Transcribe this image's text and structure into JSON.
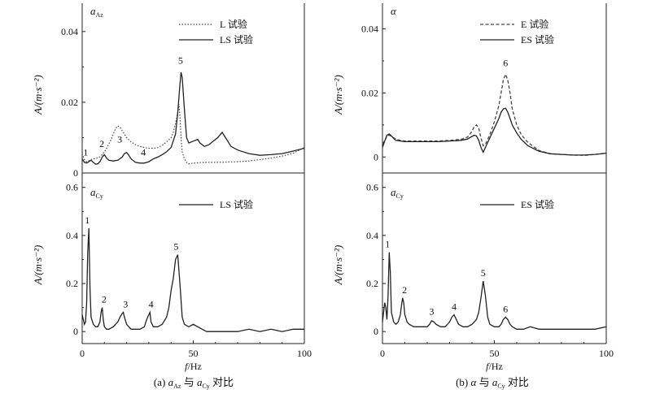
{
  "figure": {
    "caption_left": "(a) aₐ₂ 与 aᴄᵧ 对比",
    "caption_left_parts": {
      "prefix": "(a) ",
      "v1": "a",
      "s1": "Az",
      "mid": " 与 ",
      "v2": "a",
      "s2": "Cy",
      "suffix": " 对比"
    },
    "caption_right_parts": {
      "prefix": "(b) ",
      "v1": "α",
      "mid": " 与 ",
      "v2": "a",
      "s2": "Cy",
      "suffix": " 对比"
    }
  },
  "chart_data": [
    {
      "id": "tl",
      "type": "line",
      "panel_tag": {
        "var": "a",
        "sub": "Az"
      },
      "ylabel": "A/(m·s⁻²)",
      "xlim": [
        0,
        100
      ],
      "ylim": [
        0,
        0.048
      ],
      "yticks": [
        0,
        0.02,
        0.04
      ],
      "ytick_labels": [
        "0",
        "0.02",
        "0.04"
      ],
      "series": [
        {
          "name": "L 试验",
          "style": "dotted",
          "x": [
            0,
            1,
            2,
            3,
            4,
            5,
            6,
            7,
            8,
            9,
            10,
            11,
            12,
            13,
            14,
            15,
            16,
            17,
            18,
            19,
            20,
            22,
            24,
            26,
            28,
            30,
            32,
            34,
            36,
            38,
            40,
            41,
            42,
            43,
            43.5,
            44,
            44.5,
            45,
            46,
            47,
            48,
            50,
            55,
            60,
            65,
            70,
            75,
            80,
            85,
            90,
            95,
            100
          ],
          "y": [
            0.0055,
            0.0038,
            0.0032,
            0.0035,
            0.0038,
            0.004,
            0.0041,
            0.0043,
            0.0046,
            0.0052,
            0.006,
            0.007,
            0.0082,
            0.0095,
            0.011,
            0.0125,
            0.0133,
            0.013,
            0.012,
            0.011,
            0.01,
            0.0088,
            0.008,
            0.0075,
            0.0072,
            0.007,
            0.007,
            0.0072,
            0.0078,
            0.0088,
            0.01,
            0.0115,
            0.014,
            0.017,
            0.0195,
            0.016,
            0.01,
            0.006,
            0.004,
            0.003,
            0.0026,
            0.0028,
            0.003,
            0.003,
            0.0031,
            0.0032,
            0.0034,
            0.0038,
            0.0042,
            0.0048,
            0.0056,
            0.0072
          ]
        },
        {
          "name": "LS 试验",
          "style": "solid",
          "x": [
            0,
            1,
            2,
            3,
            4,
            5,
            6,
            7,
            8,
            9,
            10,
            11,
            12,
            14,
            16,
            18,
            19,
            20,
            21,
            22,
            24,
            26,
            28,
            30,
            32,
            34,
            36,
            38,
            40,
            42,
            43,
            44,
            44.5,
            45,
            46,
            47,
            48,
            50,
            52,
            53,
            55,
            57,
            59,
            61,
            63,
            65,
            67,
            70,
            75,
            80,
            85,
            90,
            95,
            100
          ],
          "y": [
            0.004,
            0.003,
            0.0028,
            0.0032,
            0.0036,
            0.003,
            0.0025,
            0.0026,
            0.0032,
            0.0045,
            0.0052,
            0.0042,
            0.0036,
            0.0034,
            0.0036,
            0.0045,
            0.0055,
            0.0058,
            0.005,
            0.004,
            0.003,
            0.0028,
            0.0028,
            0.0032,
            0.004,
            0.0045,
            0.0052,
            0.006,
            0.0072,
            0.011,
            0.017,
            0.025,
            0.0285,
            0.027,
            0.018,
            0.01,
            0.0085,
            0.009,
            0.0095,
            0.0085,
            0.0075,
            0.008,
            0.009,
            0.01,
            0.0115,
            0.0095,
            0.0075,
            0.0065,
            0.0055,
            0.005,
            0.0052,
            0.0055,
            0.0062,
            0.007
          ]
        }
      ],
      "peaks": [
        {
          "label": "1",
          "x": 3,
          "y": 0.004
        },
        {
          "label": "2",
          "x": 9.2,
          "y": 0.006
        },
        {
          "label": "3",
          "x": 18,
          "y": 0.0075
        },
        {
          "label": "4",
          "x": 27.5,
          "y": 0.0038
        },
        {
          "label": "5",
          "x": 45,
          "y": 0.0295
        }
      ],
      "legend_placement": "top-right"
    },
    {
      "id": "bl",
      "type": "line",
      "panel_tag": {
        "var": "a",
        "sub": "Cy"
      },
      "ylabel": "A/(m·s⁻²)",
      "xlim": [
        0,
        100
      ],
      "ylim": [
        -0.05,
        0.66
      ],
      "yticks": [
        0,
        0.2,
        0.4,
        0.6
      ],
      "ytick_labels": [
        "0",
        "0.2",
        "0.4",
        "0.6"
      ],
      "xticks": [
        0,
        50,
        100
      ],
      "xtick_labels": [
        "0",
        "50",
        "100"
      ],
      "xlabel_var": "f",
      "xlabel_unit": "/Hz",
      "series": [
        {
          "name": "LS 试验",
          "style": "solid",
          "x": [
            0,
            0.5,
            1,
            1.5,
            2,
            2.5,
            3,
            3.5,
            4,
            5,
            6,
            7,
            8,
            8.5,
            9,
            9.5,
            10,
            11,
            12,
            14,
            15,
            16,
            17,
            18,
            18.5,
            19,
            20,
            21,
            22,
            24,
            26,
            28,
            29,
            30,
            30.5,
            31,
            32,
            34,
            36,
            38,
            39,
            40,
            41,
            42,
            43,
            44,
            45,
            46,
            48,
            50,
            52,
            54,
            56,
            60,
            65,
            70,
            75,
            80,
            85,
            90,
            95,
            100
          ],
          "y": [
            0.07,
            0.05,
            0.03,
            0.04,
            0.12,
            0.33,
            0.43,
            0.18,
            0.06,
            0.03,
            0.02,
            0.02,
            0.04,
            0.08,
            0.1,
            0.05,
            0.02,
            0.01,
            0.01,
            0.02,
            0.03,
            0.04,
            0.06,
            0.075,
            0.08,
            0.06,
            0.03,
            0.02,
            0.01,
            0.01,
            0.01,
            0.02,
            0.05,
            0.07,
            0.08,
            0.04,
            0.02,
            0.02,
            0.03,
            0.06,
            0.1,
            0.17,
            0.22,
            0.3,
            0.32,
            0.2,
            0.06,
            0.03,
            0.02,
            0.03,
            0.02,
            0.01,
            0.0,
            0.0,
            0.0,
            0.0,
            0.01,
            0.0,
            0.01,
            0.0,
            0.01,
            0.01
          ]
        }
      ],
      "peaks": [
        {
          "label": "1",
          "x": 3,
          "y": 0.43
        },
        {
          "label": "2",
          "x": 9.5,
          "y": 0.1
        },
        {
          "label": "3",
          "x": 19.5,
          "y": 0.08
        },
        {
          "label": "4",
          "x": 31,
          "y": 0.08
        },
        {
          "label": "5",
          "x": 43,
          "y": 0.32
        }
      ],
      "legend_placement": "top-right"
    },
    {
      "id": "tr",
      "type": "line",
      "panel_tag": {
        "var": "α",
        "sub": ""
      },
      "ylabel": "A/(m·s⁻²)",
      "xlim": [
        0,
        100
      ],
      "ylim": [
        -0.005,
        0.048
      ],
      "yticks": [
        0,
        0.02,
        0.04
      ],
      "ytick_labels": [
        "0",
        "0.02",
        "0.04"
      ],
      "series": [
        {
          "name": "E 试验",
          "style": "dashed",
          "x": [
            0,
            1,
            2,
            3,
            4,
            5,
            6,
            8,
            10,
            15,
            20,
            25,
            30,
            35,
            38,
            40,
            41,
            42,
            43,
            44,
            45,
            46,
            48,
            50,
            52,
            53,
            54,
            55,
            56,
            57,
            58,
            60,
            62,
            65,
            70,
            75,
            80,
            85,
            90,
            95,
            100
          ],
          "y": [
            0.004,
            0.0052,
            0.0065,
            0.0068,
            0.0065,
            0.006,
            0.0055,
            0.0052,
            0.005,
            0.005,
            0.005,
            0.005,
            0.0052,
            0.0055,
            0.0062,
            0.008,
            0.0095,
            0.01,
            0.009,
            0.006,
            0.0035,
            0.004,
            0.007,
            0.011,
            0.016,
            0.02,
            0.024,
            0.0258,
            0.024,
            0.02,
            0.015,
            0.01,
            0.007,
            0.0045,
            0.002,
            0.001,
            0.0008,
            0.0006,
            0.0005,
            0.0008,
            0.0012
          ]
        },
        {
          "name": "ES 试验",
          "style": "solid",
          "x": [
            0,
            1,
            2,
            3,
            4,
            5,
            6,
            8,
            10,
            15,
            20,
            25,
            30,
            35,
            38,
            40,
            41,
            42,
            43,
            44,
            45,
            46,
            48,
            50,
            52,
            53,
            54,
            55,
            56,
            57,
            58,
            60,
            62,
            65,
            70,
            75,
            80,
            85,
            90,
            95,
            100
          ],
          "y": [
            0.003,
            0.005,
            0.0068,
            0.0072,
            0.0066,
            0.0058,
            0.0052,
            0.005,
            0.0048,
            0.0048,
            0.0048,
            0.0048,
            0.005,
            0.0052,
            0.0056,
            0.0064,
            0.0068,
            0.0066,
            0.0052,
            0.003,
            0.0015,
            0.003,
            0.006,
            0.009,
            0.012,
            0.014,
            0.015,
            0.0152,
            0.014,
            0.012,
            0.01,
            0.0075,
            0.0055,
            0.0035,
            0.0018,
            0.001,
            0.0008,
            0.0006,
            0.0006,
            0.0008,
            0.0012
          ]
        }
      ],
      "peaks": [
        {
          "label": "6",
          "x": 55,
          "y": 0.0268
        }
      ],
      "legend_placement": "top-right"
    },
    {
      "id": "br",
      "type": "line",
      "panel_tag": {
        "var": "a",
        "sub": "Cy"
      },
      "ylabel": "A/(m·s⁻²)",
      "xlim": [
        0,
        100
      ],
      "ylim": [
        -0.05,
        0.66
      ],
      "yticks": [
        0,
        0.2,
        0.4,
        0.6
      ],
      "ytick_labels": [
        "0",
        "0.2",
        "0.4",
        "0.6"
      ],
      "xticks": [
        0,
        50,
        100
      ],
      "xtick_labels": [
        "0",
        "50",
        "100"
      ],
      "xlabel_var": "f",
      "xlabel_unit": "/Hz",
      "series": [
        {
          "name": "ES 试验",
          "style": "solid",
          "x": [
            0,
            0.5,
            1,
            1.5,
            2,
            2.5,
            3,
            3.5,
            4,
            5,
            6,
            7,
            8,
            8.5,
            9,
            9.5,
            10,
            11,
            12,
            14,
            16,
            18,
            20,
            21,
            22,
            23,
            24,
            26,
            28,
            30,
            31,
            32,
            33,
            34,
            36,
            38,
            40,
            42,
            43,
            44,
            45,
            46,
            47,
            48,
            50,
            52,
            53,
            54,
            55,
            56,
            57,
            58,
            60,
            63,
            66,
            70,
            75,
            80,
            85,
            90,
            95,
            100
          ],
          "y": [
            0.04,
            0.08,
            0.12,
            0.1,
            0.05,
            0.15,
            0.33,
            0.25,
            0.08,
            0.04,
            0.03,
            0.04,
            0.07,
            0.11,
            0.14,
            0.12,
            0.07,
            0.04,
            0.03,
            0.02,
            0.02,
            0.02,
            0.02,
            0.03,
            0.045,
            0.04,
            0.03,
            0.02,
            0.02,
            0.04,
            0.06,
            0.07,
            0.05,
            0.03,
            0.02,
            0.02,
            0.03,
            0.05,
            0.08,
            0.14,
            0.21,
            0.15,
            0.06,
            0.03,
            0.02,
            0.02,
            0.03,
            0.05,
            0.06,
            0.05,
            0.03,
            0.02,
            0.01,
            0.01,
            0.02,
            0.01,
            0.01,
            0.01,
            0.01,
            0.01,
            0.01,
            0.02
          ]
        }
      ],
      "peaks": [
        {
          "label": "1",
          "x": 3,
          "y": 0.33
        },
        {
          "label": "2",
          "x": 9.5,
          "y": 0.14
        },
        {
          "label": "3",
          "x": 22,
          "y": 0.05
        },
        {
          "label": "4",
          "x": 32,
          "y": 0.07
        },
        {
          "label": "5",
          "x": 45,
          "y": 0.21
        },
        {
          "label": "6",
          "x": 55,
          "y": 0.06
        }
      ],
      "legend_placement": "top-right"
    }
  ]
}
